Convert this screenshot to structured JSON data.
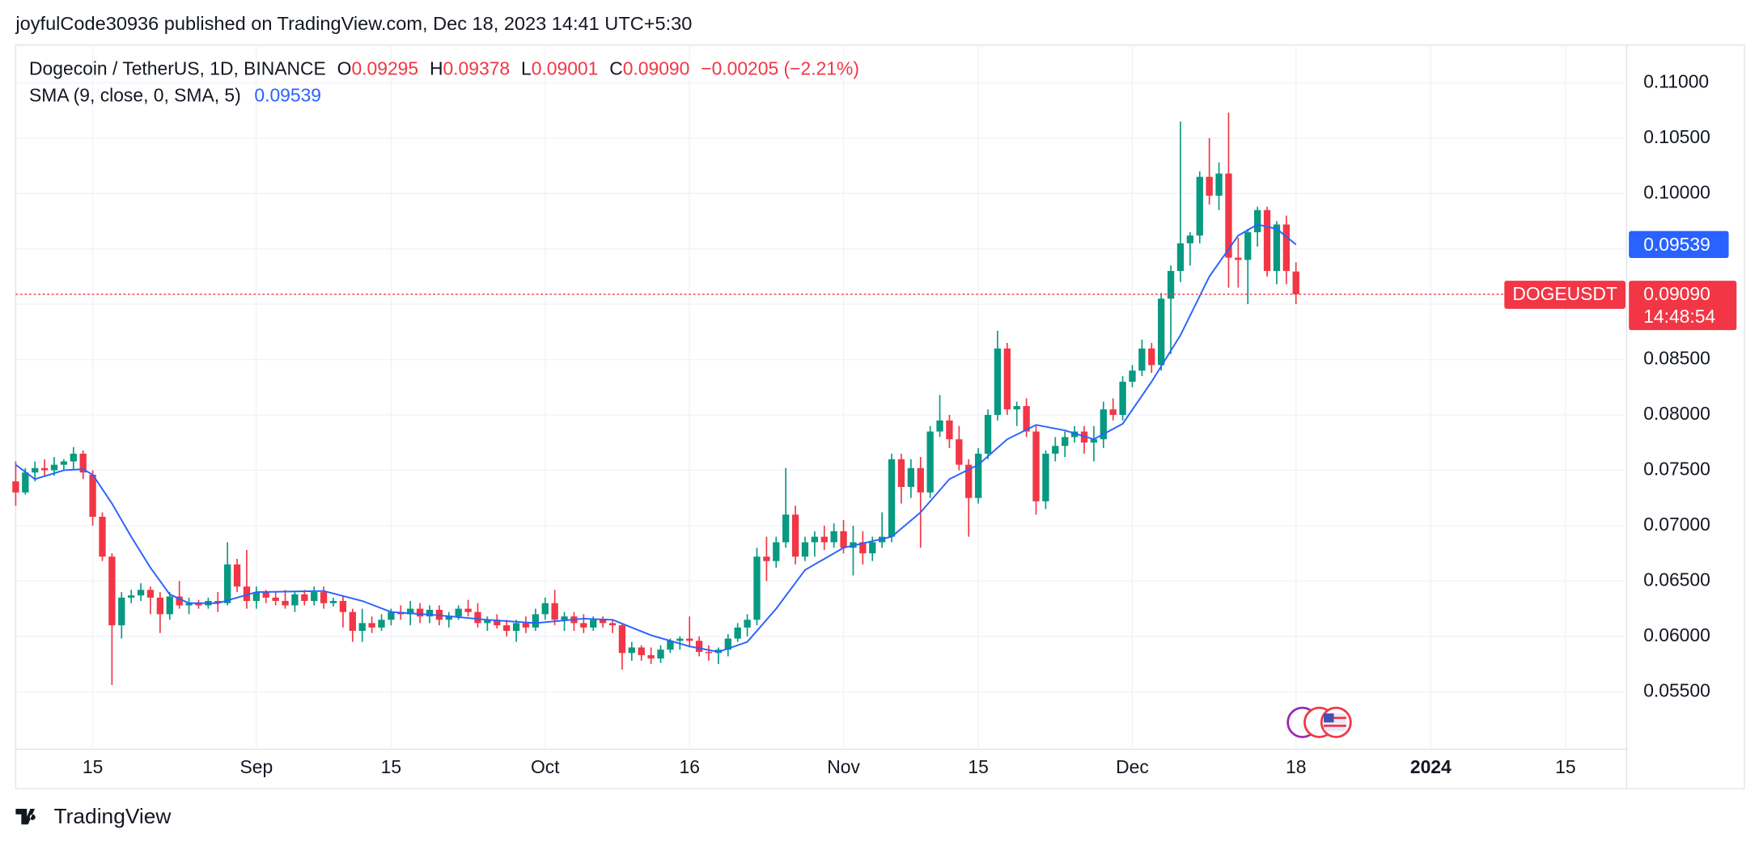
{
  "header": {
    "attribution": "joyfulCode30936 published on TradingView.com, Dec 18, 2023 14:41 UTC+5:30"
  },
  "footer": {
    "brand": "TradingView"
  },
  "chart_data": {
    "type": "candlestick",
    "legend": {
      "symbol": "Dogecoin / TetherUS, 1D, BINANCE",
      "open_key": "O",
      "open": "0.09295",
      "high_key": "H",
      "high": "0.09378",
      "low_key": "L",
      "low": "0.09001",
      "close_key": "C",
      "close": "0.09090",
      "change": "−0.00205 (−2.21%)"
    },
    "ticker": "DOGEUSDT",
    "countdown": "14:48:54",
    "up_color": "#089981",
    "down_color": "#f23645",
    "grid": true,
    "xlim": [
      "2023-08-07",
      "2024-01-21"
    ],
    "ylim": [
      0.0498,
      0.1134
    ],
    "xticks": [
      {
        "value": "2023-08-15",
        "label": "15"
      },
      {
        "value": "2023-09-01",
        "label": "Sep"
      },
      {
        "value": "2023-09-15",
        "label": "15"
      },
      {
        "value": "2023-10-01",
        "label": "Oct"
      },
      {
        "value": "2023-10-16",
        "label": "16"
      },
      {
        "value": "2023-11-01",
        "label": "Nov"
      },
      {
        "value": "2023-11-15",
        "label": "15"
      },
      {
        "value": "2023-12-01",
        "label": "Dec"
      },
      {
        "value": "2023-12-18",
        "label": "18"
      },
      {
        "value": "2024-01-01",
        "label": "2024"
      },
      {
        "value": "2024-01-15",
        "label": "15"
      }
    ],
    "yticks": [
      {
        "value": 0.055,
        "label": "0.05500"
      },
      {
        "value": 0.06,
        "label": "0.06000"
      },
      {
        "value": 0.065,
        "label": "0.06500"
      },
      {
        "value": 0.07,
        "label": "0.07000"
      },
      {
        "value": 0.075,
        "label": "0.07500"
      },
      {
        "value": 0.08,
        "label": "0.08000"
      },
      {
        "value": 0.085,
        "label": "0.08500"
      },
      {
        "value": 0.09,
        "label": "0.09000"
      },
      {
        "value": 0.095,
        "label": "0.09500"
      },
      {
        "value": 0.1,
        "label": "0.10000"
      },
      {
        "value": 0.105,
        "label": "0.10500"
      },
      {
        "value": 0.11,
        "label": "0.11000"
      }
    ],
    "x": [
      "2023-08-07",
      "2023-08-08",
      "2023-08-09",
      "2023-08-10",
      "2023-08-11",
      "2023-08-12",
      "2023-08-13",
      "2023-08-14",
      "2023-08-15",
      "2023-08-16",
      "2023-08-17",
      "2023-08-18",
      "2023-08-19",
      "2023-08-20",
      "2023-08-21",
      "2023-08-22",
      "2023-08-23",
      "2023-08-24",
      "2023-08-25",
      "2023-08-26",
      "2023-08-27",
      "2023-08-28",
      "2023-08-29",
      "2023-08-30",
      "2023-08-31",
      "2023-09-01",
      "2023-09-02",
      "2023-09-03",
      "2023-09-04",
      "2023-09-05",
      "2023-09-06",
      "2023-09-07",
      "2023-09-08",
      "2023-09-09",
      "2023-09-10",
      "2023-09-11",
      "2023-09-12",
      "2023-09-13",
      "2023-09-14",
      "2023-09-15",
      "2023-09-16",
      "2023-09-17",
      "2023-09-18",
      "2023-09-19",
      "2023-09-20",
      "2023-09-21",
      "2023-09-22",
      "2023-09-23",
      "2023-09-24",
      "2023-09-25",
      "2023-09-26",
      "2023-09-27",
      "2023-09-28",
      "2023-09-29",
      "2023-09-30",
      "2023-10-01",
      "2023-10-02",
      "2023-10-03",
      "2023-10-04",
      "2023-10-05",
      "2023-10-06",
      "2023-10-07",
      "2023-10-08",
      "2023-10-09",
      "2023-10-10",
      "2023-10-11",
      "2023-10-12",
      "2023-10-13",
      "2023-10-14",
      "2023-10-15",
      "2023-10-16",
      "2023-10-17",
      "2023-10-18",
      "2023-10-19",
      "2023-10-20",
      "2023-10-21",
      "2023-10-22",
      "2023-10-23",
      "2023-10-24",
      "2023-10-25",
      "2023-10-26",
      "2023-10-27",
      "2023-10-28",
      "2023-10-29",
      "2023-10-30",
      "2023-10-31",
      "2023-11-01",
      "2023-11-02",
      "2023-11-03",
      "2023-11-04",
      "2023-11-05",
      "2023-11-06",
      "2023-11-07",
      "2023-11-08",
      "2023-11-09",
      "2023-11-10",
      "2023-11-11",
      "2023-11-12",
      "2023-11-13",
      "2023-11-14",
      "2023-11-15",
      "2023-11-16",
      "2023-11-17",
      "2023-11-18",
      "2023-11-19",
      "2023-11-20",
      "2023-11-21",
      "2023-11-22",
      "2023-11-23",
      "2023-11-24",
      "2023-11-25",
      "2023-11-26",
      "2023-11-27",
      "2023-11-28",
      "2023-11-29",
      "2023-11-30",
      "2023-12-01",
      "2023-12-02",
      "2023-12-03",
      "2023-12-04",
      "2023-12-05",
      "2023-12-06",
      "2023-12-07",
      "2023-12-08",
      "2023-12-09",
      "2023-12-10",
      "2023-12-11",
      "2023-12-12",
      "2023-12-13",
      "2023-12-14",
      "2023-12-15",
      "2023-12-16",
      "2023-12-17",
      "2023-12-18"
    ],
    "ohlc": [
      [
        0.074,
        0.0758,
        0.0718,
        0.073
      ],
      [
        0.073,
        0.0752,
        0.0728,
        0.0748
      ],
      [
        0.0748,
        0.0758,
        0.074,
        0.0752
      ],
      [
        0.0752,
        0.076,
        0.0745,
        0.075
      ],
      [
        0.075,
        0.0762,
        0.0745,
        0.0755
      ],
      [
        0.0755,
        0.076,
        0.075,
        0.0758
      ],
      [
        0.0758,
        0.0771,
        0.075,
        0.0765
      ],
      [
        0.0765,
        0.0768,
        0.0742,
        0.0748
      ],
      [
        0.0746,
        0.075,
        0.07,
        0.0708
      ],
      [
        0.0708,
        0.0712,
        0.0668,
        0.0672
      ],
      [
        0.0672,
        0.0675,
        0.0556,
        0.061
      ],
      [
        0.061,
        0.064,
        0.0598,
        0.0635
      ],
      [
        0.0635,
        0.0642,
        0.063,
        0.0637
      ],
      [
        0.0637,
        0.0648,
        0.0632,
        0.0642
      ],
      [
        0.0642,
        0.0645,
        0.062,
        0.0635
      ],
      [
        0.0635,
        0.064,
        0.0603,
        0.062
      ],
      [
        0.062,
        0.064,
        0.0615,
        0.0636
      ],
      [
        0.0636,
        0.065,
        0.0625,
        0.0628
      ],
      [
        0.0628,
        0.0635,
        0.062,
        0.063
      ],
      [
        0.063,
        0.0633,
        0.0625,
        0.0628
      ],
      [
        0.0628,
        0.0635,
        0.0625,
        0.0632
      ],
      [
        0.0632,
        0.064,
        0.0622,
        0.063
      ],
      [
        0.063,
        0.0685,
        0.0628,
        0.0665
      ],
      [
        0.0665,
        0.067,
        0.064,
        0.0645
      ],
      [
        0.0645,
        0.0678,
        0.0625,
        0.0632
      ],
      [
        0.0632,
        0.0645,
        0.0625,
        0.064
      ],
      [
        0.064,
        0.0642,
        0.063,
        0.0635
      ],
      [
        0.0635,
        0.064,
        0.0628,
        0.0632
      ],
      [
        0.0632,
        0.0642,
        0.0625,
        0.0628
      ],
      [
        0.0628,
        0.064,
        0.0622,
        0.0638
      ],
      [
        0.0638,
        0.0642,
        0.0628,
        0.0632
      ],
      [
        0.0632,
        0.0645,
        0.0628,
        0.064
      ],
      [
        0.064,
        0.0645,
        0.0625,
        0.063
      ],
      [
        0.063,
        0.0635,
        0.0627,
        0.0632
      ],
      [
        0.0632,
        0.0636,
        0.0608,
        0.0622
      ],
      [
        0.0622,
        0.0625,
        0.0595,
        0.0605
      ],
      [
        0.0605,
        0.0625,
        0.0595,
        0.0612
      ],
      [
        0.0612,
        0.0618,
        0.0603,
        0.0608
      ],
      [
        0.0608,
        0.062,
        0.0605,
        0.0615
      ],
      [
        0.0615,
        0.0625,
        0.061,
        0.0622
      ],
      [
        0.0622,
        0.0628,
        0.0615,
        0.062
      ],
      [
        0.062,
        0.0632,
        0.061,
        0.0625
      ],
      [
        0.0625,
        0.063,
        0.0612,
        0.0618
      ],
      [
        0.0618,
        0.0628,
        0.0612,
        0.0624
      ],
      [
        0.0624,
        0.0628,
        0.061,
        0.0615
      ],
      [
        0.0615,
        0.0622,
        0.0608,
        0.0618
      ],
      [
        0.0618,
        0.0628,
        0.0615,
        0.0625
      ],
      [
        0.0625,
        0.0633,
        0.0618,
        0.0622
      ],
      [
        0.0622,
        0.063,
        0.0608,
        0.0612
      ],
      [
        0.0612,
        0.0618,
        0.0605,
        0.0615
      ],
      [
        0.0615,
        0.062,
        0.0607,
        0.061
      ],
      [
        0.061,
        0.0615,
        0.06,
        0.0605
      ],
      [
        0.0605,
        0.0615,
        0.0595,
        0.0612
      ],
      [
        0.0612,
        0.0618,
        0.0603,
        0.0608
      ],
      [
        0.0608,
        0.0625,
        0.0605,
        0.062
      ],
      [
        0.062,
        0.0635,
        0.0615,
        0.063
      ],
      [
        0.063,
        0.0642,
        0.061,
        0.0615
      ],
      [
        0.0615,
        0.0622,
        0.0605,
        0.0618
      ],
      [
        0.0618,
        0.0622,
        0.0605,
        0.0612
      ],
      [
        0.0612,
        0.062,
        0.0603,
        0.0608
      ],
      [
        0.0608,
        0.0618,
        0.0605,
        0.0615
      ],
      [
        0.0615,
        0.0618,
        0.0608,
        0.0612
      ],
      [
        0.0612,
        0.0615,
        0.0603,
        0.061
      ],
      [
        0.061,
        0.0612,
        0.057,
        0.0585
      ],
      [
        0.0585,
        0.0595,
        0.0578,
        0.059
      ],
      [
        0.059,
        0.0592,
        0.0578,
        0.0583
      ],
      [
        0.0583,
        0.059,
        0.0575,
        0.058
      ],
      [
        0.058,
        0.0592,
        0.0576,
        0.0588
      ],
      [
        0.0588,
        0.0598,
        0.0585,
        0.0596
      ],
      [
        0.0596,
        0.06,
        0.0588,
        0.0598
      ],
      [
        0.0598,
        0.0618,
        0.059,
        0.0596
      ],
      [
        0.0596,
        0.06,
        0.0582,
        0.0586
      ],
      [
        0.0586,
        0.0592,
        0.0578,
        0.0585
      ],
      [
        0.0585,
        0.059,
        0.0575,
        0.0588
      ],
      [
        0.0588,
        0.0602,
        0.0582,
        0.0598
      ],
      [
        0.0598,
        0.0612,
        0.0595,
        0.0608
      ],
      [
        0.0608,
        0.062,
        0.06,
        0.0615
      ],
      [
        0.0615,
        0.068,
        0.061,
        0.0672
      ],
      [
        0.0672,
        0.069,
        0.065,
        0.0668
      ],
      [
        0.0668,
        0.069,
        0.0662,
        0.0685
      ],
      [
        0.0685,
        0.0752,
        0.068,
        0.071
      ],
      [
        0.071,
        0.0718,
        0.0665,
        0.0672
      ],
      [
        0.0672,
        0.069,
        0.0668,
        0.0685
      ],
      [
        0.0685,
        0.0695,
        0.0672,
        0.069
      ],
      [
        0.069,
        0.07,
        0.0678,
        0.0685
      ],
      [
        0.0685,
        0.0702,
        0.068,
        0.0695
      ],
      [
        0.0695,
        0.0705,
        0.0675,
        0.068
      ],
      [
        0.068,
        0.07,
        0.0655,
        0.0685
      ],
      [
        0.0685,
        0.0695,
        0.0665,
        0.0675
      ],
      [
        0.0675,
        0.069,
        0.0668,
        0.0685
      ],
      [
        0.0685,
        0.0712,
        0.068,
        0.069
      ],
      [
        0.069,
        0.0765,
        0.0685,
        0.076
      ],
      [
        0.076,
        0.0765,
        0.072,
        0.0735
      ],
      [
        0.0735,
        0.076,
        0.0725,
        0.0752
      ],
      [
        0.0752,
        0.0762,
        0.068,
        0.073
      ],
      [
        0.073,
        0.079,
        0.0725,
        0.0785
      ],
      [
        0.0785,
        0.0818,
        0.078,
        0.0795
      ],
      [
        0.0795,
        0.08,
        0.077,
        0.0778
      ],
      [
        0.0778,
        0.079,
        0.075,
        0.0755
      ],
      [
        0.0755,
        0.076,
        0.069,
        0.0725
      ],
      [
        0.0725,
        0.077,
        0.072,
        0.0765
      ],
      [
        0.0765,
        0.0805,
        0.076,
        0.08
      ],
      [
        0.08,
        0.0876,
        0.0795,
        0.086
      ],
      [
        0.086,
        0.0865,
        0.08,
        0.0805
      ],
      [
        0.0805,
        0.0812,
        0.079,
        0.0808
      ],
      [
        0.0808,
        0.0815,
        0.078,
        0.0785
      ],
      [
        0.0785,
        0.079,
        0.071,
        0.0722
      ],
      [
        0.0722,
        0.0768,
        0.0715,
        0.0765
      ],
      [
        0.0765,
        0.078,
        0.0758,
        0.0772
      ],
      [
        0.0772,
        0.0785,
        0.0762,
        0.078
      ],
      [
        0.078,
        0.079,
        0.0775,
        0.0785
      ],
      [
        0.0785,
        0.079,
        0.0765,
        0.0775
      ],
      [
        0.0775,
        0.079,
        0.0758,
        0.0778
      ],
      [
        0.0778,
        0.0812,
        0.077,
        0.0805
      ],
      [
        0.0805,
        0.0815,
        0.0795,
        0.08
      ],
      [
        0.08,
        0.0835,
        0.0795,
        0.083
      ],
      [
        0.083,
        0.0845,
        0.0825,
        0.084
      ],
      [
        0.084,
        0.0868,
        0.0835,
        0.086
      ],
      [
        0.086,
        0.0865,
        0.0838,
        0.0845
      ],
      [
        0.0845,
        0.091,
        0.084,
        0.0905
      ],
      [
        0.0905,
        0.0935,
        0.0855,
        0.093
      ],
      [
        0.093,
        0.1065,
        0.092,
        0.0955
      ],
      [
        0.0955,
        0.0965,
        0.0935,
        0.0962
      ],
      [
        0.0962,
        0.102,
        0.0955,
        0.1015
      ],
      [
        0.1015,
        0.105,
        0.099,
        0.0998
      ],
      [
        0.0998,
        0.1028,
        0.0985,
        0.1018
      ],
      [
        0.1018,
        0.1073,
        0.0915,
        0.0942
      ],
      [
        0.0942,
        0.096,
        0.0915,
        0.094
      ],
      [
        0.094,
        0.0968,
        0.09,
        0.0965
      ],
      [
        0.0965,
        0.0988,
        0.0952,
        0.0985
      ],
      [
        0.0985,
        0.0988,
        0.0925,
        0.093
      ],
      [
        0.093,
        0.0975,
        0.0918,
        0.0972
      ],
      [
        0.0972,
        0.098,
        0.0918,
        0.093
      ],
      [
        0.09295,
        0.09378,
        0.09001,
        0.0909
      ]
    ],
    "sma": {
      "name": "SMA (9, close, 0, SMA, 5)",
      "color": "#2962ff",
      "x": [
        "2023-08-07",
        "2023-08-09",
        "2023-08-12",
        "2023-08-14",
        "2023-08-15",
        "2023-08-17",
        "2023-08-19",
        "2023-08-21",
        "2023-08-23",
        "2023-08-25",
        "2023-08-28",
        "2023-09-01",
        "2023-09-08",
        "2023-09-12",
        "2023-09-15",
        "2023-09-20",
        "2023-09-25",
        "2023-09-30",
        "2023-10-05",
        "2023-10-08",
        "2023-10-12",
        "2023-10-16",
        "2023-10-19",
        "2023-10-22",
        "2023-10-25",
        "2023-10-28",
        "2023-11-01",
        "2023-11-06",
        "2023-11-09",
        "2023-11-12",
        "2023-11-15",
        "2023-11-18",
        "2023-11-21",
        "2023-11-24",
        "2023-11-27",
        "2023-11-30",
        "2023-12-03",
        "2023-12-06",
        "2023-12-09",
        "2023-12-12",
        "2023-12-14",
        "2023-12-16",
        "2023-12-18"
      ],
      "values": [
        0.0755,
        0.0742,
        0.075,
        0.0751,
        0.0746,
        0.072,
        0.069,
        0.0662,
        0.0638,
        0.063,
        0.063,
        0.064,
        0.0641,
        0.0632,
        0.0622,
        0.0619,
        0.0615,
        0.0612,
        0.0616,
        0.0615,
        0.0601,
        0.0591,
        0.0586,
        0.0595,
        0.0625,
        0.066,
        0.068,
        0.069,
        0.0712,
        0.0742,
        0.0755,
        0.0778,
        0.0791,
        0.0786,
        0.0778,
        0.0792,
        0.083,
        0.0872,
        0.0925,
        0.0962,
        0.0972,
        0.0968,
        0.09539
      ]
    }
  }
}
